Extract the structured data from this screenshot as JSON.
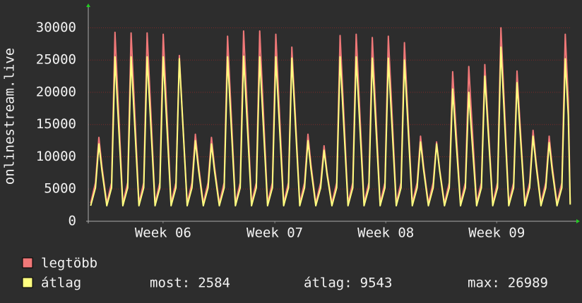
{
  "chart_data": {
    "type": "line",
    "ylabel": "onlinestream.live",
    "xlim": [
      0,
      30
    ],
    "xticks": [
      {
        "value": 4.65,
        "label": "Week 06"
      },
      {
        "value": 11.6,
        "label": "Week 07"
      },
      {
        "value": 18.5,
        "label": "Week 08"
      },
      {
        "value": 25.4,
        "label": "Week 09"
      }
    ],
    "ylim": [
      0,
      33000
    ],
    "yticks": [
      0,
      5000,
      10000,
      15000,
      20000,
      25000,
      30000
    ],
    "grid": true,
    "x": [
      0.15,
      0.45,
      0.66,
      0.85,
      1.15,
      1.45,
      1.66,
      1.85,
      2.15,
      2.45,
      2.66,
      2.85,
      3.15,
      3.45,
      3.66,
      3.85,
      4.15,
      4.45,
      4.66,
      4.85,
      5.15,
      5.45,
      5.66,
      5.85,
      6.15,
      6.45,
      6.66,
      6.85,
      7.15,
      7.45,
      7.66,
      7.85,
      8.15,
      8.45,
      8.66,
      8.85,
      9.15,
      9.45,
      9.66,
      9.85,
      10.15,
      10.45,
      10.66,
      10.85,
      11.15,
      11.45,
      11.66,
      11.85,
      12.15,
      12.45,
      12.66,
      12.85,
      13.15,
      13.45,
      13.66,
      13.85,
      14.15,
      14.45,
      14.66,
      14.85,
      15.15,
      15.45,
      15.66,
      15.85,
      16.15,
      16.45,
      16.66,
      16.85,
      17.15,
      17.45,
      17.66,
      17.85,
      18.15,
      18.45,
      18.66,
      18.85,
      19.15,
      19.45,
      19.66,
      19.85,
      20.15,
      20.45,
      20.66,
      20.85,
      21.15,
      21.45,
      21.66,
      21.85,
      22.15,
      22.45,
      22.66,
      22.85,
      23.15,
      23.45,
      23.66,
      23.85,
      24.15,
      24.45,
      24.66,
      24.85,
      25.15,
      25.45,
      25.66,
      25.85,
      26.15,
      26.45,
      26.66,
      26.85,
      27.15,
      27.45,
      27.66,
      27.85,
      28.15,
      28.45,
      28.66,
      28.85,
      29.15,
      29.45,
      29.66,
      29.85,
      29.97
    ],
    "series": [
      {
        "name": "legtöbb",
        "color": "#f07878",
        "values": [
          2800,
          6000,
          13000,
          8450,
          2800,
          6000,
          29300,
          19000,
          2800,
          6000,
          29200,
          19000,
          2800,
          6000,
          29200,
          19000,
          2800,
          6000,
          29000,
          18900,
          2800,
          6000,
          25700,
          16700,
          2800,
          6000,
          13500,
          8800,
          2800,
          6000,
          13000,
          8500,
          2800,
          6000,
          28700,
          18700,
          2800,
          6000,
          29500,
          19200,
          2800,
          6000,
          29500,
          19200,
          2800,
          6000,
          29000,
          18900,
          2800,
          6000,
          27000,
          17600,
          2800,
          6000,
          13500,
          8800,
          2800,
          6000,
          11700,
          7600,
          2800,
          6000,
          28800,
          18700,
          2800,
          6000,
          29000,
          18900,
          2800,
          6000,
          28500,
          18500,
          2800,
          6000,
          28700,
          18700,
          2800,
          6000,
          27700,
          18000,
          2800,
          6000,
          13200,
          8600,
          2800,
          6000,
          12300,
          8000,
          2800,
          6000,
          23200,
          15100,
          2800,
          6000,
          24000,
          15600,
          2800,
          6000,
          24300,
          15800,
          2800,
          6000,
          30000,
          19500,
          2800,
          6000,
          23300,
          15100,
          2800,
          6000,
          14100,
          9200,
          2800,
          6000,
          13200,
          8600,
          2800,
          6000,
          29000,
          18900,
          2800
        ]
      },
      {
        "name": "átlag",
        "color": "#ffff80",
        "values": [
          2400,
          5200,
          12000,
          7800,
          2400,
          5200,
          25500,
          16600,
          2400,
          5200,
          25500,
          16600,
          2400,
          5200,
          25500,
          16600,
          2400,
          5200,
          25500,
          16600,
          2400,
          5200,
          25200,
          16400,
          2400,
          5200,
          12500,
          8100,
          2400,
          5200,
          12000,
          7800,
          2400,
          5200,
          25500,
          16600,
          2400,
          5200,
          25600,
          16600,
          2400,
          5200,
          25500,
          16600,
          2400,
          5200,
          25500,
          16600,
          2400,
          5200,
          25300,
          16400,
          2400,
          5200,
          12500,
          8100,
          2400,
          5200,
          11000,
          7200,
          2400,
          5200,
          25500,
          16600,
          2400,
          5200,
          25500,
          16600,
          2400,
          5200,
          25300,
          16400,
          2400,
          5200,
          25300,
          16400,
          2400,
          5200,
          25000,
          16300,
          2400,
          5200,
          12300,
          8000,
          2400,
          5200,
          12000,
          7800,
          2400,
          5200,
          20500,
          13300,
          2400,
          5200,
          20000,
          13000,
          2400,
          5200,
          22500,
          14600,
          2400,
          5200,
          27000,
          17600,
          2400,
          5200,
          21500,
          14000,
          2400,
          5200,
          13200,
          8600,
          2400,
          5200,
          12200,
          7900,
          2400,
          5200,
          25200,
          16400,
          2584
        ]
      }
    ],
    "stats": [
      {
        "label": "most:",
        "value": 2584
      },
      {
        "label": "átlag:",
        "value": 9543
      },
      {
        "label": "max:",
        "value": 26989
      }
    ]
  }
}
